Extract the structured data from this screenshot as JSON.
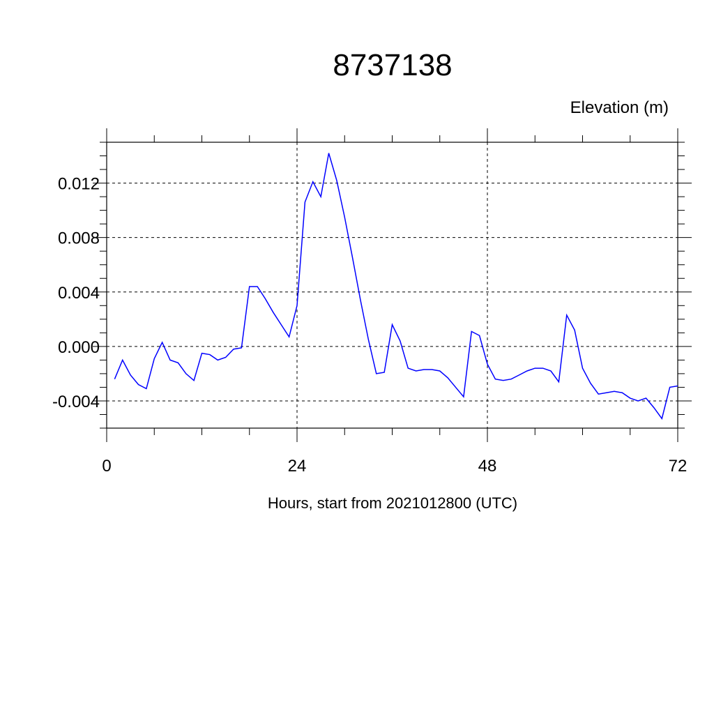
{
  "chart_data": {
    "type": "line",
    "title": "8737138",
    "ylabel": "Elevation (m)",
    "xlabel": "Hours, start from 2021012800 (UTC)",
    "xlim": [
      0,
      72
    ],
    "ylim": [
      -0.006,
      0.015
    ],
    "x_ticks": [
      0,
      24,
      48,
      72
    ],
    "x_tick_labels": [
      "0",
      "24",
      "48",
      "72"
    ],
    "y_ticks": [
      -0.004,
      0.0,
      0.004,
      0.008,
      0.012
    ],
    "y_tick_labels": [
      "-0.004",
      "0.000",
      "0.004",
      "0.008",
      "0.012"
    ],
    "grid": true,
    "line_color": "#0000ff",
    "series": [
      {
        "x": [
          1,
          2,
          3,
          4,
          5,
          6,
          7,
          8,
          9,
          10,
          11,
          12,
          13,
          14,
          15,
          16,
          17,
          18,
          19,
          20,
          21,
          22,
          23,
          24,
          25,
          26,
          27,
          28,
          29,
          30,
          31,
          32,
          33,
          34,
          35,
          36,
          37,
          38,
          39,
          40,
          41,
          42,
          43,
          44,
          45,
          46,
          47,
          48,
          49,
          50,
          51,
          52,
          53,
          54,
          55,
          56,
          57,
          58,
          59,
          60,
          61,
          62,
          63,
          64,
          65,
          66,
          67,
          68,
          69,
          70,
          71,
          72
        ],
        "values": [
          -0.0024,
          -0.001,
          -0.0021,
          -0.0028,
          -0.0031,
          -0.0009,
          0.0003,
          -0.001,
          -0.0012,
          -0.002,
          -0.0025,
          -0.0005,
          -0.0006,
          -0.001,
          -0.0008,
          -0.0002,
          -0.0001,
          0.0044,
          0.0044,
          0.0035,
          0.0025,
          0.0016,
          0.0007,
          0.003,
          0.0106,
          0.0121,
          0.011,
          0.0142,
          0.0122,
          0.0095,
          0.0065,
          0.0034,
          0.0005,
          -0.002,
          -0.0019,
          0.0016,
          0.0004,
          -0.0016,
          -0.0018,
          -0.0017,
          -0.0017,
          -0.0018,
          -0.0023,
          -0.003,
          -0.0037,
          0.0011,
          0.0008,
          -0.0013,
          -0.0024,
          -0.0025,
          -0.0024,
          -0.0021,
          -0.0018,
          -0.0016,
          -0.0016,
          -0.0018,
          -0.0026,
          0.0023,
          0.0012,
          -0.0016,
          -0.0027,
          -0.0035,
          -0.0034,
          -0.0033,
          -0.0034,
          -0.0038,
          -0.004,
          -0.0038,
          -0.0045,
          -0.0053,
          -0.003,
          -0.0029
        ]
      }
    ]
  }
}
